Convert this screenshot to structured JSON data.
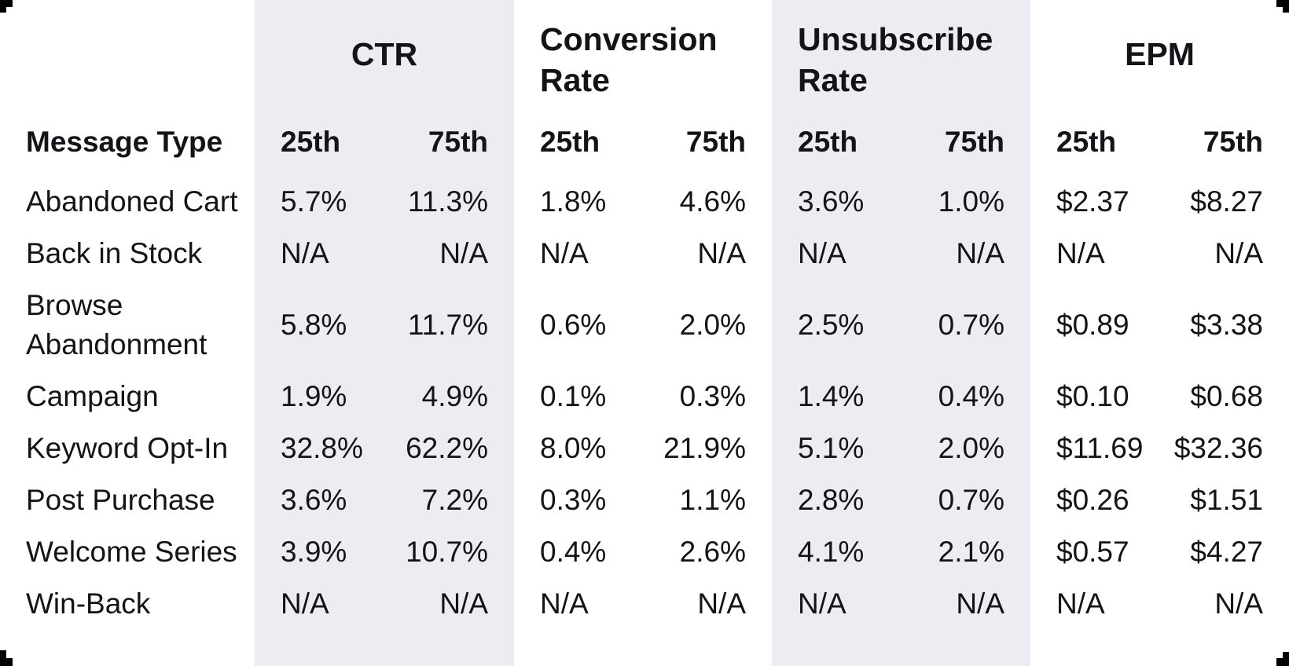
{
  "colors": {
    "background": "#ffffff",
    "stripe": "#ececf2",
    "text": "#141418"
  },
  "chart_data": {
    "type": "table",
    "row_header": "Message Type",
    "column_groups": [
      "CTR",
      "Conversion Rate",
      "Unsubscribe Rate",
      "EPM"
    ],
    "sub_columns": [
      "25th",
      "75th"
    ],
    "rows": [
      {
        "type": "Abandoned Cart",
        "values": [
          "5.7%",
          "11.3%",
          "1.8%",
          "4.6%",
          "3.6%",
          "1.0%",
          "$2.37",
          "$8.27"
        ]
      },
      {
        "type": "Back in Stock",
        "values": [
          "N/A",
          "N/A",
          "N/A",
          "N/A",
          "N/A",
          "N/A",
          "N/A",
          "N/A"
        ]
      },
      {
        "type": "Browse Abandonment",
        "values": [
          "5.8%",
          "11.7%",
          "0.6%",
          "2.0%",
          "2.5%",
          "0.7%",
          "$0.89",
          "$3.38"
        ]
      },
      {
        "type": "Campaign",
        "values": [
          "1.9%",
          "4.9%",
          "0.1%",
          "0.3%",
          "1.4%",
          "0.4%",
          "$0.10",
          "$0.68"
        ]
      },
      {
        "type": "Keyword Opt-In",
        "values": [
          "32.8%",
          "62.2%",
          "8.0%",
          "21.9%",
          "5.1%",
          "2.0%",
          "$11.69",
          "$32.36"
        ]
      },
      {
        "type": "Post Purchase",
        "values": [
          "3.6%",
          "7.2%",
          "0.3%",
          "1.1%",
          "2.8%",
          "0.7%",
          "$0.26",
          "$1.51"
        ]
      },
      {
        "type": "Welcome Series",
        "values": [
          "3.9%",
          "10.7%",
          "0.4%",
          "2.6%",
          "4.1%",
          "2.1%",
          "$0.57",
          "$4.27"
        ]
      },
      {
        "type": "Win-Back",
        "values": [
          "N/A",
          "N/A",
          "N/A",
          "N/A",
          "N/A",
          "N/A",
          "N/A",
          "N/A"
        ]
      }
    ]
  },
  "table": {
    "row_header": "Message Type",
    "groups": {
      "ctr": "CTR",
      "conversion": "Conversion Rate",
      "unsubscribe": "Unsubscribe Rate",
      "epm": "EPM"
    },
    "pct": {
      "p25": "25th",
      "p75": "75th"
    }
  }
}
